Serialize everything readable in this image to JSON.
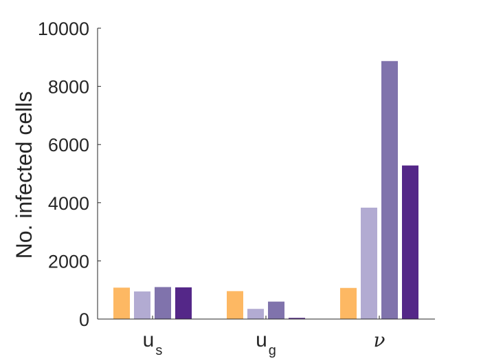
{
  "chart_data": {
    "type": "bar",
    "categories": [
      {
        "base": "u",
        "sub": "s",
        "greek": false
      },
      {
        "base": "u",
        "sub": "g",
        "greek": false
      },
      {
        "base": "ν",
        "sub": "",
        "greek": true
      }
    ],
    "series": [
      {
        "values": [
          1080,
          960,
          1070
        ],
        "color": "#fdb863"
      },
      {
        "values": [
          950,
          350,
          3830
        ],
        "color": "#b2abd2"
      },
      {
        "values": [
          1100,
          600,
          8870
        ],
        "color": "#8073ac"
      },
      {
        "values": [
          1090,
          40,
          5280
        ],
        "color": "#542788"
      }
    ],
    "title": "",
    "xlabel": "",
    "ylabel": "No. infected cells",
    "ylim": [
      0,
      10000
    ],
    "yticks": [
      0,
      2000,
      4000,
      6000,
      8000,
      10000
    ],
    "grid": false,
    "legend": "none",
    "axis_color": "#262626"
  }
}
